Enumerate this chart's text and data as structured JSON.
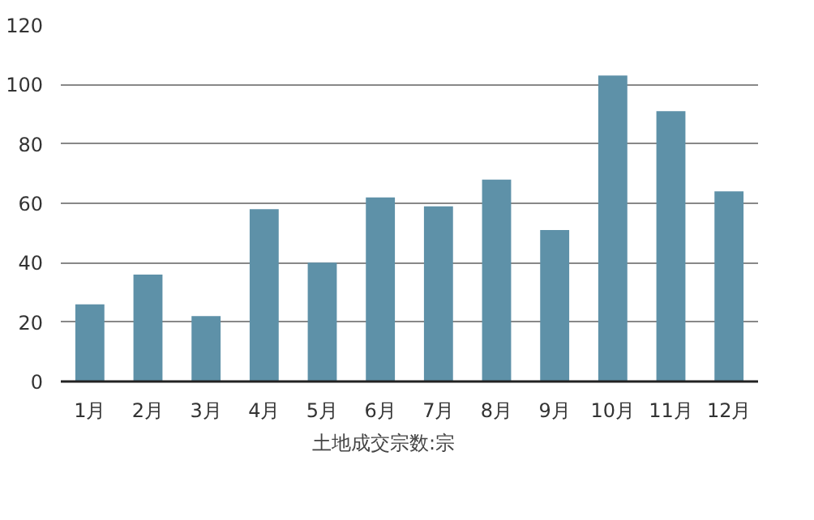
{
  "chart_data": {
    "type": "bar",
    "categories": [
      "1月",
      "2月",
      "3月",
      "4月",
      "5月",
      "6月",
      "7月",
      "8月",
      "9月",
      "10月",
      "11月",
      "12月"
    ],
    "series": [
      {
        "name": "土地成交宗数:宗",
        "color": "#5e91a8",
        "values": [
          26,
          36,
          22,
          58,
          40,
          62,
          59,
          68,
          51,
          103,
          91,
          64
        ]
      }
    ],
    "ylim": [
      0,
      120
    ],
    "yticks": [
      0,
      20,
      40,
      60,
      80,
      100,
      120
    ],
    "grid": "y",
    "legend": "bottom"
  }
}
